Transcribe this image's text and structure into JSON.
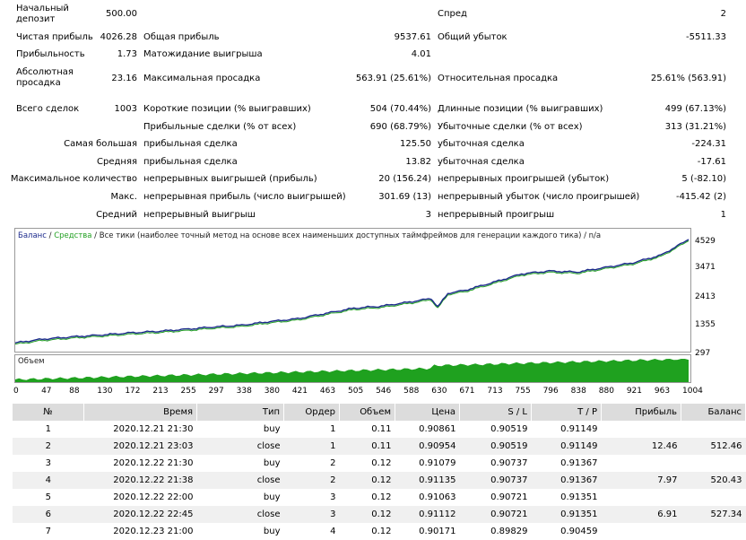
{
  "summary": {
    "initial_deposit_label": "Начальный депозит",
    "initial_deposit": "500.00",
    "spread_label": "Спред",
    "spread": "2",
    "net_profit_label": "Чистая прибыль",
    "net_profit": "4026.28",
    "gross_profit_label": "Общая прибыль",
    "gross_profit": "9537.61",
    "gross_loss_label": "Общий убыток",
    "gross_loss": "-5511.33",
    "profit_factor_label": "Прибыльность",
    "profit_factor": "1.73",
    "expected_payoff_label": "Матожидание выигрыша",
    "expected_payoff": "4.01",
    "abs_drawdown_label": "Абсолютная просадка",
    "abs_drawdown": "23.16",
    "max_drawdown_label": "Максимальная просадка",
    "max_drawdown": "563.91 (25.61%)",
    "rel_drawdown_label": "Относительная просадка",
    "rel_drawdown": "25.61% (563.91)",
    "total_trades_label": "Всего сделок",
    "total_trades": "1003",
    "short_label": "Короткие позиции (% выигравших)",
    "short": "504 (70.44%)",
    "long_label": "Длинные позиции (% выигравших)",
    "long": "499 (67.13%)",
    "profit_trades_label": "Прибыльные сделки (% от всех)",
    "profit_trades": "690 (68.79%)",
    "loss_trades_label": "Убыточные сделки (% от всех)",
    "loss_trades": "313 (31.21%)",
    "largest_label": "Самая большая",
    "largest_profit_label": "прибыльная сделка",
    "largest_profit": "125.50",
    "largest_loss_label": "убыточная сделка",
    "largest_loss": "-224.31",
    "average_label": "Средняя",
    "average_profit_label": "прибыльная сделка",
    "average_profit": "13.82",
    "average_loss_label": "убыточная сделка",
    "average_loss": "-17.61",
    "max_count_label": "Максимальное количество",
    "max_cons_wins_label": "непрерывных выигрышей (прибыль)",
    "max_cons_wins": "20 (156.24)",
    "max_cons_losses_label": "непрерывных проигрышей (убыток)",
    "max_cons_losses": "5 (-82.10)",
    "max_label": "Макс.",
    "max_cons_profit_label": "непрерывная прибыль (число выигрышей)",
    "max_cons_profit": "301.69 (13)",
    "max_cons_loss_label": "непрерывный убыток (число проигрышей)",
    "max_cons_loss": "-415.42 (2)",
    "avg_label": "Средний",
    "avg_cons_wins_label": "непрерывный выигрыш",
    "avg_cons_wins": "3",
    "avg_cons_losses_label": "непрерывный проигрыш",
    "avg_cons_losses": "1"
  },
  "graph": {
    "legend_balance": "Баланс",
    "legend_sep1": " / ",
    "legend_equity": "Средства",
    "legend_rest": " / Все тики (наиболее точный метод на основе всех наименьших доступных таймфреймов для генерации каждого тика) / n/a",
    "volume_label": "Объем",
    "balance_color": "#1c2a8c",
    "equity_color": "#22a022",
    "volume_color": "#1fa11f"
  },
  "chart_data": {
    "type": "line",
    "y_ticks": [
      "4529",
      "3471",
      "2413",
      "1355",
      "297"
    ],
    "ylim": [
      297,
      4529
    ],
    "x_ticks": [
      "0",
      "47",
      "88",
      "130",
      "172",
      "213",
      "255",
      "297",
      "338",
      "380",
      "421",
      "463",
      "505",
      "546",
      "588",
      "630",
      "671",
      "713",
      "755",
      "796",
      "838",
      "880",
      "921",
      "963",
      "1004"
    ],
    "xlim": [
      0,
      1004
    ],
    "series": [
      {
        "name": "Баланс",
        "x": [
          0,
          40,
          88,
          130,
          172,
          213,
          255,
          297,
          338,
          380,
          421,
          463,
          505,
          546,
          588,
          620,
          630,
          645,
          671,
          713,
          755,
          796,
          838,
          880,
          921,
          963,
          1004
        ],
        "y": [
          500,
          640,
          740,
          810,
          890,
          950,
          1030,
          1120,
          1190,
          1330,
          1440,
          1650,
          1850,
          1930,
          2090,
          2230,
          1900,
          2430,
          2550,
          2860,
          3190,
          3300,
          3260,
          3440,
          3620,
          3920,
          4529
        ]
      }
    ]
  },
  "orders": {
    "headers": [
      "№",
      "Время",
      "Тип",
      "Ордер",
      "Объем",
      "Цена",
      "S / L",
      "T / P",
      "Прибыль",
      "Баланс"
    ],
    "rows": [
      [
        "1",
        "2020.12.21 21:30",
        "buy",
        "1",
        "0.11",
        "0.90861",
        "0.90519",
        "0.91149",
        "",
        ""
      ],
      [
        "2",
        "2020.12.21 23:03",
        "close",
        "1",
        "0.11",
        "0.90954",
        "0.90519",
        "0.91149",
        "12.46",
        "512.46"
      ],
      [
        "3",
        "2020.12.22 21:30",
        "buy",
        "2",
        "0.12",
        "0.91079",
        "0.90737",
        "0.91367",
        "",
        ""
      ],
      [
        "4",
        "2020.12.22 21:38",
        "close",
        "2",
        "0.12",
        "0.91135",
        "0.90737",
        "0.91367",
        "7.97",
        "520.43"
      ],
      [
        "5",
        "2020.12.22 22:00",
        "buy",
        "3",
        "0.12",
        "0.91063",
        "0.90721",
        "0.91351",
        "",
        ""
      ],
      [
        "6",
        "2020.12.22 22:45",
        "close",
        "3",
        "0.12",
        "0.91112",
        "0.90721",
        "0.91351",
        "6.91",
        "527.34"
      ],
      [
        "7",
        "2020.12.23 21:00",
        "buy",
        "4",
        "0.12",
        "0.90171",
        "0.89829",
        "0.90459",
        "",
        ""
      ]
    ]
  }
}
